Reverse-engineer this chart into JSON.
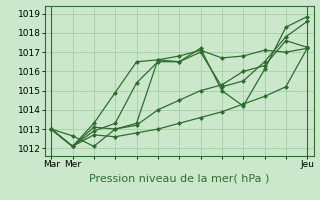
{
  "bg_color": "#cce8cc",
  "plot_bg_color": "#cce8cc",
  "grid_color": "#99cc99",
  "line_color": "#2d6e2d",
  "spine_color": "#2d6e2d",
  "ylim": [
    1011.6,
    1019.4
  ],
  "xlabel": "Pression niveau de la mer( hPa )",
  "xlabel_fontsize": 8,
  "tick_fontsize": 6.5,
  "yticks": [
    1012,
    1013,
    1014,
    1015,
    1016,
    1017,
    1018,
    1019
  ],
  "xtick_positions": [
    0,
    1,
    12
  ],
  "xtick_labels": [
    "Mar",
    "Mer",
    "Jeu"
  ],
  "xlim": [
    -0.3,
    12.3
  ],
  "marker": "D",
  "markersize": 2.0,
  "linewidth": 0.9,
  "series": [
    [
      1013.0,
      1012.65,
      1012.1,
      1013.0,
      1013.3,
      1016.6,
      1016.8,
      1017.1,
      1016.7,
      1016.8,
      1017.1,
      1017.0,
      1017.2
    ],
    [
      1013.0,
      1012.1,
      1012.9,
      1013.3,
      1015.4,
      1016.5,
      1016.5,
      1017.0,
      1015.2,
      1015.5,
      1016.5,
      1017.8,
      1018.6
    ],
    [
      1013.0,
      1012.1,
      1013.3,
      1014.9,
      1016.5,
      1016.6,
      1016.5,
      1017.2,
      1015.0,
      1014.2,
      1016.1,
      1018.3,
      1018.85
    ],
    [
      1013.0,
      1012.1,
      1013.1,
      1013.0,
      1013.2,
      1014.0,
      1014.5,
      1015.0,
      1015.3,
      1016.0,
      1016.3,
      1017.6,
      1017.25
    ],
    [
      1013.0,
      1012.1,
      1012.7,
      1012.6,
      1012.8,
      1013.0,
      1013.3,
      1013.6,
      1013.9,
      1014.3,
      1014.7,
      1015.2,
      1017.2
    ]
  ],
  "figsize": [
    3.2,
    2.0
  ],
  "dpi": 100
}
